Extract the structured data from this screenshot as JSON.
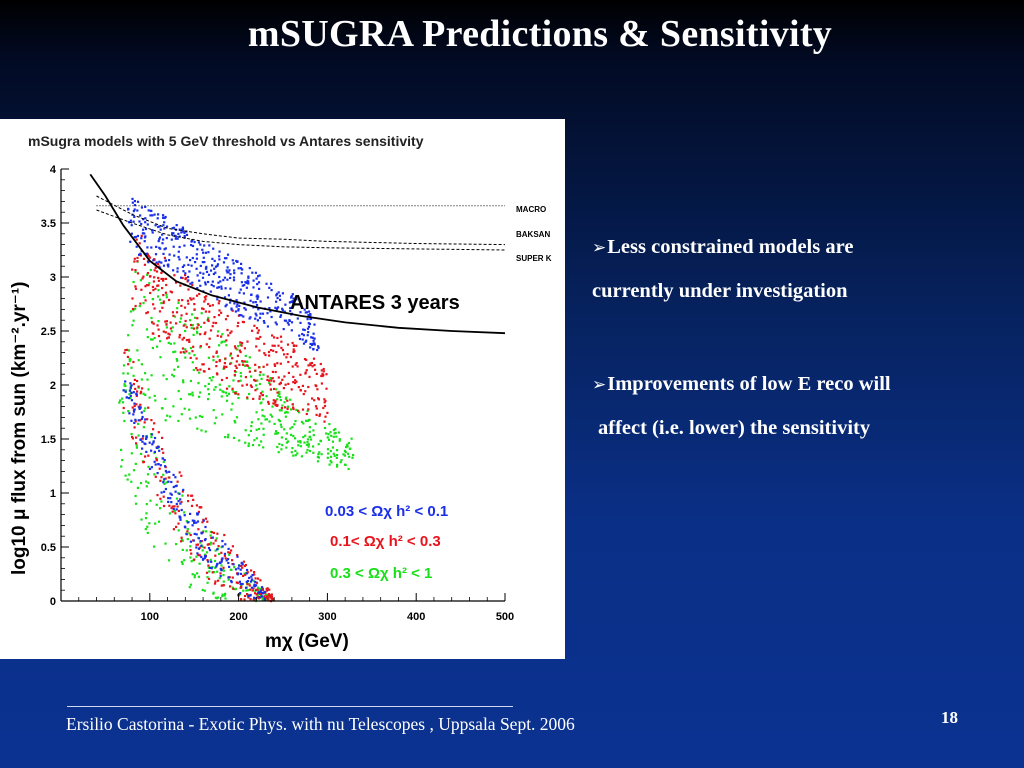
{
  "slide": {
    "title": "mSUGRA Predictions & Sensitivity",
    "bullets": [
      {
        "marker": "➢",
        "lines": [
          "Less constrained models are",
          "currently under investigation"
        ]
      },
      {
        "marker": "➢",
        "lines": [
          "Improvements of low E reco will",
          "affect (i.e. lower) the sensitivity"
        ]
      }
    ],
    "footer": "Ersilio Castorina - Exotic Phys. with nu Telescopes , Uppsala Sept. 2006",
    "slide_number": "18"
  },
  "chart_data": {
    "type": "scatter",
    "title": "mSugra models with 5 GeV threshold vs Antares sensitivity",
    "xlabel": "mχ (GeV)",
    "ylabel": "log10 μ flux from sun (km⁻².yr⁻¹)",
    "xlim": [
      0,
      500
    ],
    "ylim": [
      0,
      4
    ],
    "x_ticks": [
      100,
      200,
      300,
      400,
      500
    ],
    "y_ticks": [
      0,
      0.5,
      1,
      1.5,
      2,
      2.5,
      3,
      3.5,
      4
    ],
    "y_tick_labels": [
      "0",
      "0.5",
      "1",
      "1.5",
      "2",
      "2.5",
      "3",
      "3.5",
      "4"
    ],
    "grid": false,
    "legend_position": "bottom-right",
    "annotation": "ANTARES 3 years",
    "colors": {
      "blue": "#1a2fe8",
      "red": "#e8141c",
      "green": "#18e018",
      "curve": "#000000"
    },
    "series": [
      {
        "name": "0.03 <  Ωχ h² < 0.1",
        "color": "#1a2fe8",
        "upper_band": {
          "x": [
            75,
            100,
            150,
            200,
            260,
            290
          ],
          "y_top": [
            3.8,
            3.65,
            3.4,
            3.15,
            2.85,
            2.6
          ],
          "y_bottom": [
            3.3,
            3.1,
            2.9,
            2.65,
            2.45,
            2.3
          ]
        },
        "lower_band": {
          "x": [
            70,
            100,
            150,
            200,
            230
          ],
          "y_top": [
            2.25,
            1.6,
            0.85,
            0.4,
            0.1
          ],
          "y_bottom": [
            1.85,
            1.2,
            0.45,
            0.05,
            0.0
          ]
        }
      },
      {
        "name": "0.1< Ωχ h² < 0.3",
        "color": "#e8141c",
        "upper_band": {
          "x": [
            80,
            100,
            150,
            200,
            260,
            300
          ],
          "y_top": [
            3.5,
            3.3,
            2.95,
            2.65,
            2.4,
            2.2
          ],
          "y_bottom": [
            2.7,
            2.5,
            2.15,
            1.9,
            1.75,
            1.65
          ]
        },
        "lower_band": {
          "x": [
            70,
            100,
            150,
            200,
            240
          ],
          "y_top": [
            2.55,
            1.75,
            0.95,
            0.45,
            0.05
          ],
          "y_bottom": [
            1.75,
            1.05,
            0.3,
            0.0,
            0.0
          ]
        }
      },
      {
        "name": "0.3 < Ωχ h² < 1",
        "color": "#18e018",
        "upper_band": {
          "x": [
            75,
            100,
            150,
            200,
            260,
            330
          ],
          "y_top": [
            3.2,
            3.1,
            2.75,
            2.4,
            1.85,
            1.5
          ],
          "y_bottom": [
            1.8,
            1.7,
            1.6,
            1.45,
            1.35,
            1.2
          ]
        },
        "lower_band": {
          "x": [
            65,
            100,
            150,
            200,
            240
          ],
          "y_top": [
            2.4,
            1.6,
            0.85,
            0.35,
            0.0
          ],
          "y_bottom": [
            1.25,
            0.55,
            0.05,
            0.0,
            0.0
          ]
        }
      }
    ],
    "curves": [
      {
        "name": "ANTARES 3 years",
        "style": "solid",
        "x": [
          33,
          50,
          70,
          100,
          130,
          170,
          220,
          270,
          320,
          380,
          440,
          500
        ],
        "y": [
          3.95,
          3.75,
          3.48,
          3.15,
          2.96,
          2.83,
          2.72,
          2.64,
          2.58,
          2.53,
          2.5,
          2.48
        ]
      },
      {
        "name": "MACRO",
        "style": "dotted",
        "x": [
          40,
          100,
          200,
          300,
          400,
          500
        ],
        "y": [
          3.66,
          3.66,
          3.66,
          3.66,
          3.66,
          3.66
        ]
      },
      {
        "name": "BAKSAN",
        "style": "dashed",
        "x": [
          40,
          80,
          120,
          160,
          200,
          250,
          300,
          400,
          500
        ],
        "y": [
          3.75,
          3.58,
          3.45,
          3.4,
          3.36,
          3.35,
          3.33,
          3.31,
          3.3
        ]
      },
      {
        "name": "SUPER K",
        "style": "dashed",
        "x": [
          40,
          80,
          120,
          160,
          200,
          250,
          300,
          400,
          500
        ],
        "y": [
          3.62,
          3.5,
          3.39,
          3.33,
          3.3,
          3.28,
          3.27,
          3.26,
          3.25
        ]
      }
    ]
  }
}
